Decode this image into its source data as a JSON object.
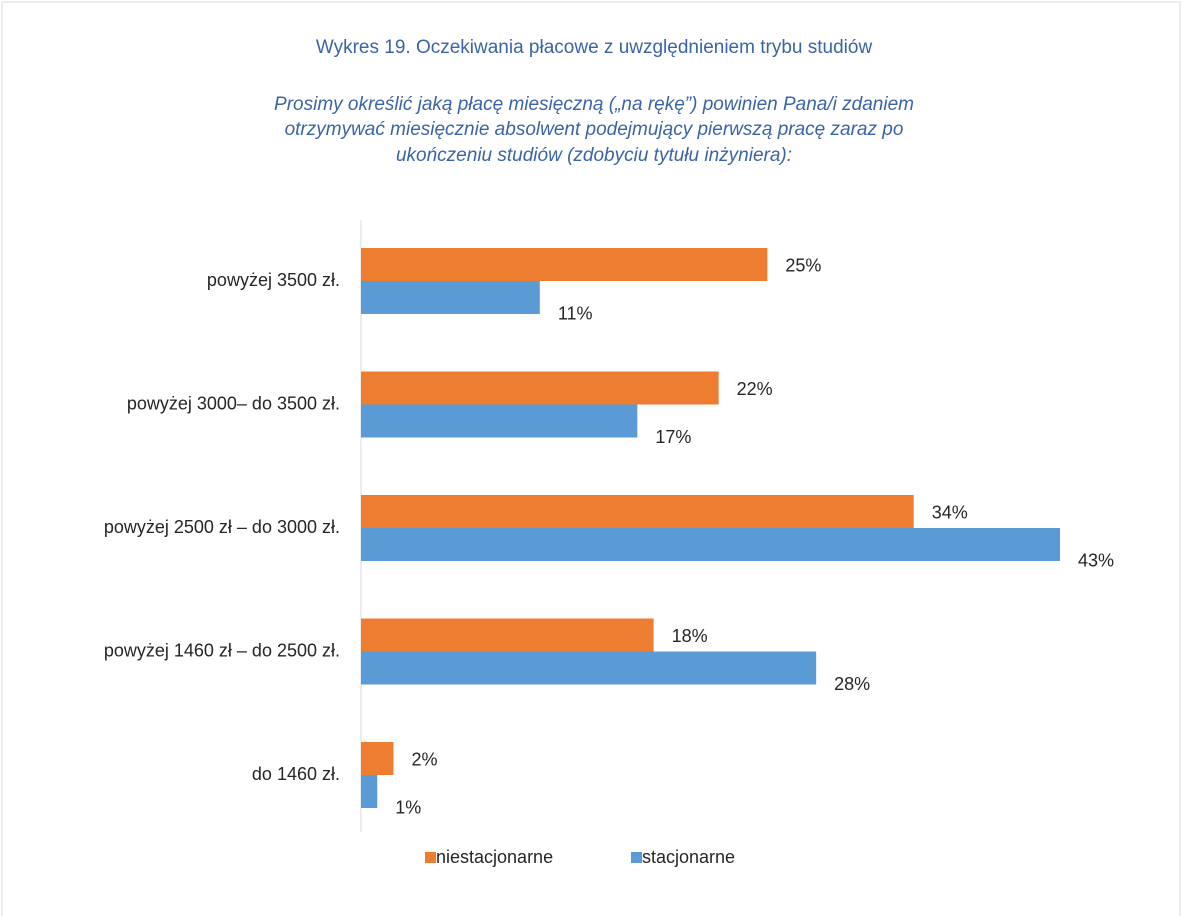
{
  "chart_data": {
    "type": "hbar",
    "title": "Wykres 19. Oczekiwania płacowe z uwzględnieniem trybu studiów",
    "subtitle": [
      "Prosimy określić jaką płacę miesięczną („na rękę”) powinien Pana/i zdaniem",
      "otrzymywać miesięcznie absolwent podejmujący pierwszą pracę zaraz po",
      "ukończeniu studiów (zdobyciu tytułu inżyniera):"
    ],
    "categories": [
      "powyżej 3500 zł.",
      "powyżej 3000– do 3500 zł.",
      "powyżej 2500 zł – do 3000 zł.",
      "powyżej 1460 zł – do 2500 zł.",
      "do 1460 zł."
    ],
    "series": [
      {
        "name": "niestacjonarne",
        "color": "#ed7d31",
        "values": [
          25,
          22,
          34,
          18,
          2
        ],
        "value_labels": [
          "25%",
          "22%",
          "34%",
          "18%",
          "2%"
        ]
      },
      {
        "name": "stacjonarne",
        "color": "#5b9bd5",
        "values": [
          11,
          17,
          43,
          28,
          1
        ],
        "value_labels": [
          "11%",
          "17%",
          "43%",
          "28%",
          "1%"
        ]
      }
    ],
    "legend": "bottom"
  }
}
